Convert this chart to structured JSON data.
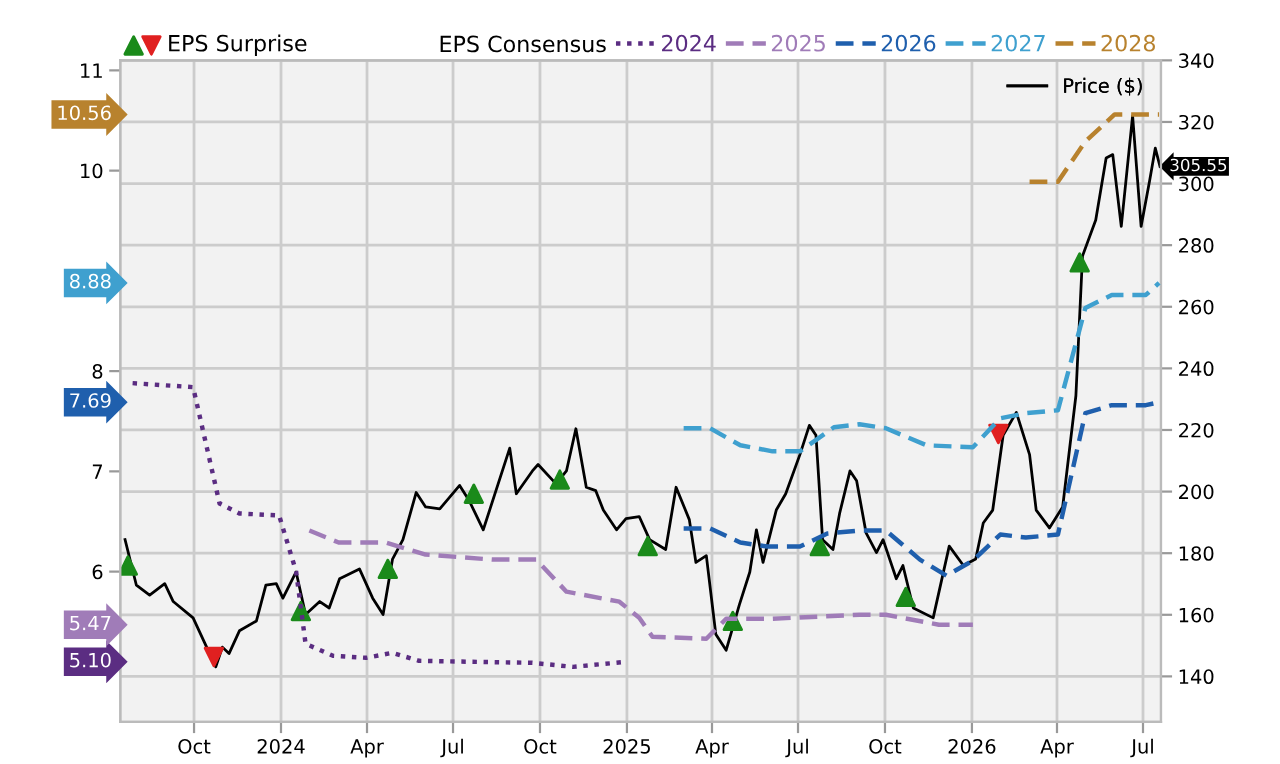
{
  "chart_data": {
    "type": "line",
    "legend_title": "EPS Consensus",
    "legend": "top",
    "xlim": [
      "2023-07-15",
      "2026-07-20"
    ],
    "xticks": [
      {
        "value": "2023-10-01",
        "label": "Oct"
      },
      {
        "value": "2024-01-01",
        "label": "2024"
      },
      {
        "value": "2024-04-01",
        "label": "Apr"
      },
      {
        "value": "2024-07-01",
        "label": "Jul"
      },
      {
        "value": "2024-10-01",
        "label": "Oct"
      },
      {
        "value": "2025-01-01",
        "label": "2025"
      },
      {
        "value": "2025-04-01",
        "label": "Apr"
      },
      {
        "value": "2025-07-01",
        "label": "Jul"
      },
      {
        "value": "2025-10-01",
        "label": "Oct"
      },
      {
        "value": "2026-01-01",
        "label": "2026"
      },
      {
        "value": "2026-04-01",
        "label": "Apr"
      },
      {
        "value": "2026-07-01",
        "label": "Jul"
      }
    ],
    "ylim": [
      4.5,
      11.1
    ],
    "yticks": [
      6,
      7,
      8,
      10,
      11
    ],
    "y2lim": [
      125.2,
      340
    ],
    "y2ticks": [
      140,
      160,
      180,
      200,
      220,
      240,
      260,
      280,
      300,
      320,
      340
    ],
    "grid": true,
    "series": [
      {
        "name": "2024",
        "color": "#5b2d82",
        "line_style": "dotted",
        "x": [
          "2023-07-28",
          "2023-09-30",
          "2023-10-28",
          "2023-11-18",
          "2023-12-30",
          "2024-01-17",
          "2024-01-27",
          "2024-02-25",
          "2024-03-31",
          "2024-04-28",
          "2024-05-26",
          "2024-09-23",
          "2024-11-05",
          "2024-12-31"
        ],
        "values": [
          7.88,
          7.84,
          6.68,
          6.58,
          6.56,
          6.0,
          5.28,
          5.16,
          5.14,
          5.19,
          5.11,
          5.09,
          5.05,
          5.1
        ]
      },
      {
        "name": "2025",
        "color": "#a07cb8",
        "line_style": "dashed",
        "x": [
          "2024-01-31",
          "2024-03-02",
          "2024-04-21",
          "2024-06-02",
          "2024-08-12",
          "2024-09-27",
          "2024-10-29",
          "2024-12-24",
          "2025-01-14",
          "2025-01-28",
          "2025-03-26",
          "2025-04-16",
          "2025-06-04",
          "2025-09-04",
          "2025-10-02",
          "2025-11-27",
          "2026-01-02"
        ],
        "values": [
          6.41,
          6.29,
          6.29,
          6.17,
          6.12,
          6.12,
          5.8,
          5.7,
          5.54,
          5.35,
          5.33,
          5.53,
          5.53,
          5.57,
          5.57,
          5.47,
          5.47
        ]
      },
      {
        "name": "2026",
        "color": "#1f5fad",
        "line_style": "dashed",
        "x": [
          "2025-03-02",
          "2025-03-30",
          "2025-05-01",
          "2025-05-29",
          "2025-07-03",
          "2025-08-01",
          "2025-09-04",
          "2025-10-02",
          "2025-11-07",
          "2025-12-05",
          "2026-01-02",
          "2026-01-31",
          "2026-02-27",
          "2026-04-02",
          "2026-05-01",
          "2026-05-29",
          "2026-07-04",
          "2026-07-18"
        ],
        "values": [
          6.43,
          6.43,
          6.29,
          6.25,
          6.25,
          6.38,
          6.41,
          6.41,
          6.12,
          5.96,
          6.11,
          6.37,
          6.34,
          6.37,
          7.58,
          7.66,
          7.66,
          7.69
        ]
      },
      {
        "name": "2027",
        "color": "#3fa0cf",
        "line_style": "dashed",
        "x": [
          "2025-03-02",
          "2025-03-30",
          "2025-05-01",
          "2025-06-04",
          "2025-07-03",
          "2025-08-08",
          "2025-09-04",
          "2025-10-02",
          "2025-11-14",
          "2026-01-02",
          "2026-01-31",
          "2026-02-27",
          "2026-04-02",
          "2026-05-01",
          "2026-05-29",
          "2026-07-04",
          "2026-07-18"
        ],
        "values": [
          7.43,
          7.43,
          7.26,
          7.2,
          7.2,
          7.44,
          7.47,
          7.43,
          7.26,
          7.24,
          7.53,
          7.58,
          7.61,
          8.63,
          8.76,
          8.76,
          8.88
        ]
      },
      {
        "name": "2028",
        "color": "#b8822e",
        "line_style": "dashed",
        "x": [
          "2026-03-03",
          "2026-04-02",
          "2026-05-01",
          "2026-06-01",
          "2026-07-18"
        ],
        "values": [
          9.89,
          9.89,
          10.29,
          10.56,
          10.56
        ]
      },
      {
        "name": "Price ($)",
        "color": "#000000",
        "line_style": "solid",
        "axis": "y2",
        "x": [
          "2023-07-20",
          "2023-08-01",
          "2023-08-15",
          "2023-08-31",
          "2023-09-09",
          "2023-09-30",
          "2023-10-24",
          "2023-10-31",
          "2023-11-07",
          "2023-11-18",
          "2023-12-06",
          "2023-12-16",
          "2023-12-27",
          "2024-01-03",
          "2024-01-17",
          "2024-01-27",
          "2024-02-11",
          "2024-02-21",
          "2024-03-03",
          "2024-03-24",
          "2024-04-07",
          "2024-04-18",
          "2024-04-28",
          "2024-05-09",
          "2024-05-23",
          "2024-06-02",
          "2024-06-17",
          "2024-07-08",
          "2024-07-18",
          "2024-08-02",
          "2024-08-30",
          "2024-09-06",
          "2024-09-23",
          "2024-09-29",
          "2024-10-18",
          "2024-10-29",
          "2024-11-08",
          "2024-11-19",
          "2024-11-29",
          "2024-12-07",
          "2024-12-21",
          "2024-12-31",
          "2025-01-14",
          "2025-01-25",
          "2025-02-11",
          "2025-02-22",
          "2025-03-08",
          "2025-03-15",
          "2025-03-26",
          "2025-04-05",
          "2025-04-16",
          "2025-04-30",
          "2025-05-11",
          "2025-05-18",
          "2025-05-25",
          "2025-06-08",
          "2025-06-18",
          "2025-07-03",
          "2025-07-13",
          "2025-07-20",
          "2025-07-27",
          "2025-08-07",
          "2025-08-14",
          "2025-08-25",
          "2025-09-01",
          "2025-09-11",
          "2025-09-22",
          "2025-09-29",
          "2025-10-13",
          "2025-10-20",
          "2025-10-31",
          "2025-11-21",
          "2025-12-08",
          "2025-12-23",
          "2026-01-05",
          "2026-01-13",
          "2026-01-23",
          "2026-02-03",
          "2026-02-17",
          "2026-03-03",
          "2026-03-10",
          "2026-03-24",
          "2026-04-07",
          "2026-04-21",
          "2026-04-28",
          "2026-05-12",
          "2026-05-23",
          "2026-05-30",
          "2026-06-08",
          "2026-06-20",
          "2026-06-29",
          "2026-07-08",
          "2026-07-14",
          "2026-07-19"
        ],
        "values": [
          184.4,
          169.6,
          166.4,
          170.1,
          164.3,
          159.0,
          143.1,
          149.5,
          147.4,
          154.8,
          158.0,
          169.6,
          170.1,
          165.4,
          173.9,
          160.1,
          164.3,
          162.2,
          171.7,
          174.9,
          165.4,
          160.1,
          178.1,
          184.4,
          199.7,
          195.0,
          194.4,
          202.0,
          197.1,
          187.6,
          214.1,
          199.3,
          206.7,
          208.8,
          202.5,
          206.7,
          220.4,
          201.4,
          200.3,
          194.0,
          187.6,
          191.2,
          191.9,
          184.4,
          181.2,
          201.4,
          190.9,
          177.0,
          179.2,
          153.7,
          148.5,
          163.3,
          173.9,
          187.6,
          177.0,
          194.0,
          199.3,
          212.0,
          221.5,
          218.3,
          184.4,
          181.2,
          192.9,
          206.7,
          203.5,
          186.6,
          180.2,
          184.4,
          171.7,
          176.0,
          162.2,
          159.0,
          182.3,
          176.0,
          178.1,
          189.8,
          194.0,
          218.3,
          225.7,
          212.0,
          194.0,
          188.2,
          195.0,
          231.1,
          276.5,
          288.2,
          308.3,
          309.4,
          286.1,
          322.0,
          286.1,
          300.9,
          311.5,
          305.55
        ]
      },
      {
        "name": "EPS Surprise",
        "type": "scatter",
        "marker": "triangle",
        "color": "#1a8a1a",
        "axis": "y2",
        "x": [
          "2023-07-23",
          "2024-01-22",
          "2024-04-23",
          "2024-07-23",
          "2024-10-22",
          "2025-01-23",
          "2025-04-23",
          "2025-07-24",
          "2025-10-23",
          "2026-04-25"
        ],
        "values": [
          176.0,
          161.2,
          174.9,
          199.3,
          203.9,
          182.3,
          158.0,
          182.3,
          165.8,
          274.4
        ]
      },
      {
        "type": "scatter",
        "marker": "triangle_down",
        "color": "#e02020",
        "axis": "y2",
        "x": [
          "2023-10-22",
          "2026-01-29"
        ],
        "values": [
          146.3,
          218.7
        ]
      }
    ],
    "annotations": [
      "5.10",
      "5.47",
      "7.69",
      "8.88",
      "10.56",
      "305.55"
    ]
  }
}
